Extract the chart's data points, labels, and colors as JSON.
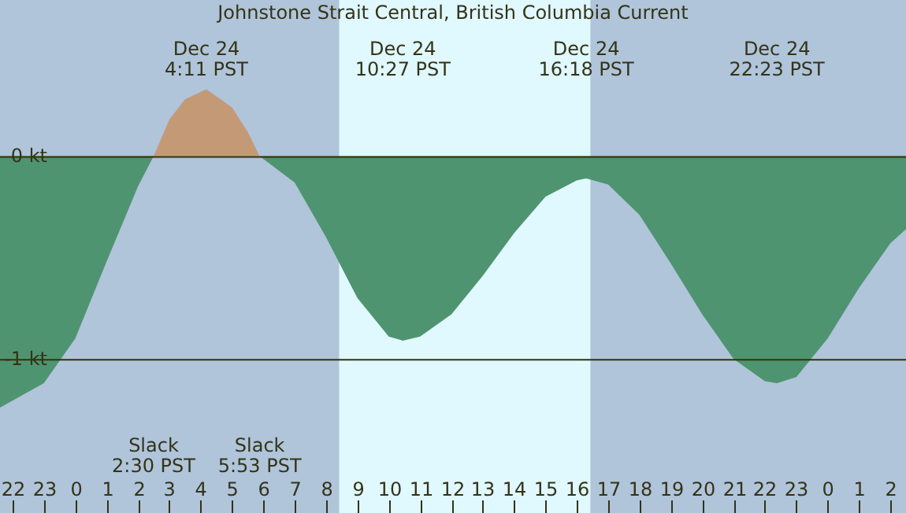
{
  "chart_data": {
    "type": "area",
    "title": "Johnstone Strait Central, British Columbia Current",
    "series": [
      {
        "color": "#c49a76",
        "x": [
          "--12-24T02:30",
          "--12-24T03:00",
          "--12-24T03:30",
          "--12-24T04:11",
          "--12-24T05:00",
          "--12-24T05:30",
          "--12-24T05:53"
        ],
        "values": [
          0,
          0.18,
          0.28,
          0.33,
          0.24,
          0.12,
          0
        ]
      },
      {
        "color": "#4f9470",
        "x": [
          "--12-23T21:36",
          "--12-23T23:00",
          "--12-24T00:00",
          "--12-24T01:00",
          "--12-24T02:00",
          "--12-24T02:30",
          "--12-24T05:53",
          "--12-24T07:00",
          "--12-24T08:00",
          "--12-24T09:00",
          "--12-24T10:00",
          "--12-24T10:27",
          "--12-24T11:00",
          "--12-24T12:00",
          "--12-24T13:00",
          "--12-24T14:00",
          "--12-24T15:00",
          "--12-24T16:00",
          "--12-24T16:18",
          "--12-24T17:00",
          "--12-24T18:00",
          "--12-24T19:00",
          "--12-24T20:00",
          "--12-24T21:00",
          "--12-24T22:00",
          "--12-24T22:23",
          "--12-24T23:00",
          "--12-25T00:00",
          "--12-25T01:00",
          "--12-25T02:00",
          "--12-25T02:30"
        ],
        "values": [
          -1.24,
          -1.12,
          -0.9,
          -0.52,
          -0.15,
          0,
          0,
          -0.13,
          -0.4,
          -0.7,
          -0.89,
          -0.91,
          -0.89,
          -0.78,
          -0.59,
          -0.38,
          -0.2,
          -0.12,
          -0.11,
          -0.14,
          -0.29,
          -0.53,
          -0.78,
          -1,
          -1.11,
          -1.12,
          -1.09,
          -0.9,
          -0.65,
          -0.43,
          -0.36
        ]
      }
    ],
    "xlim": [
      "--12-23T21:36",
      "--12-25T02:30"
    ],
    "ylim": [
      -1.76,
      0.77
    ],
    "xticks": [
      {
        "value": "--12-23T22:00",
        "label": "22"
      },
      {
        "value": "--12-23T23:00",
        "label": "23"
      },
      {
        "value": "--12-24T00:00",
        "label": "0"
      },
      {
        "value": "--12-24T01:00",
        "label": "1"
      },
      {
        "value": "--12-24T02:00",
        "label": "2"
      },
      {
        "value": "--12-24T03:00",
        "label": "3"
      },
      {
        "value": "--12-24T04:00",
        "label": "4"
      },
      {
        "value": "--12-24T05:00",
        "label": "5"
      },
      {
        "value": "--12-24T06:00",
        "label": "6"
      },
      {
        "value": "--12-24T07:00",
        "label": "7"
      },
      {
        "value": "--12-24T08:00",
        "label": "8"
      },
      {
        "value": "--12-24T09:00",
        "label": "9"
      },
      {
        "value": "--12-24T10:00",
        "label": "10"
      },
      {
        "value": "--12-24T11:00",
        "label": "11"
      },
      {
        "value": "--12-24T12:00",
        "label": "12"
      },
      {
        "value": "--12-24T13:00",
        "label": "13"
      },
      {
        "value": "--12-24T14:00",
        "label": "14"
      },
      {
        "value": "--12-24T15:00",
        "label": "15"
      },
      {
        "value": "--12-24T16:00",
        "label": "16"
      },
      {
        "value": "--12-24T17:00",
        "label": "17"
      },
      {
        "value": "--12-24T18:00",
        "label": "18"
      },
      {
        "value": "--12-24T19:00",
        "label": "19"
      },
      {
        "value": "--12-24T20:00",
        "label": "20"
      },
      {
        "value": "--12-24T21:00",
        "label": "21"
      },
      {
        "value": "--12-24T22:00",
        "label": "22"
      },
      {
        "value": "--12-24T23:00",
        "label": "23"
      },
      {
        "value": "--12-25T00:00",
        "label": "0"
      },
      {
        "value": "--12-25T01:00",
        "label": "1"
      },
      {
        "value": "--12-25T02:00",
        "label": "2"
      }
    ],
    "yticks": [
      {
        "value": 0,
        "label": "0 kt"
      },
      {
        "value": -1,
        "label": "-1 kt"
      }
    ],
    "grid": "y",
    "bands": [
      {
        "axis": "x",
        "from": "--12-24T08:25",
        "to": "--12-24T16:26",
        "color": "#e0f8ff"
      }
    ],
    "annotations": [
      "Dec 24\n4:11 PST",
      "Dec 24\n10:27 PST",
      "Dec 24\n16:18 PST",
      "Dec 24\n22:23 PST",
      "Slack\n2:30 PST",
      "Slack\n5:53 PST"
    ]
  }
}
